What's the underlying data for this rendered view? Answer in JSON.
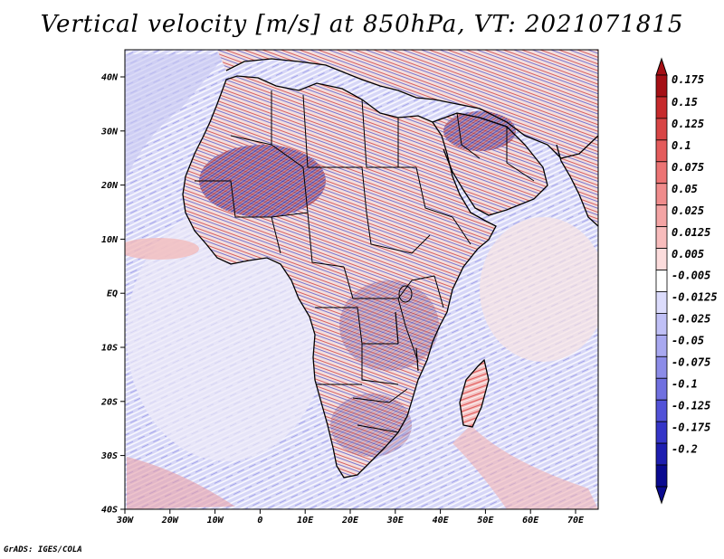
{
  "title": "Vertical velocity [m/s] at 850hPa, VT: 2021071815",
  "credit": "GrADS: IGES/COLA",
  "map": {
    "lon_ticks": [
      "30W",
      "20W",
      "10W",
      "0",
      "10E",
      "20E",
      "30E",
      "40E",
      "50E",
      "60E",
      "70E"
    ],
    "lat_ticks": [
      "40N",
      "30N",
      "20N",
      "10N",
      "EQ",
      "10S",
      "20S",
      "30S",
      "40S"
    ]
  },
  "colorbar": {
    "labels": [
      "0.175",
      "0.15",
      "0.125",
      "0.1",
      "0.075",
      "0.05",
      "0.025",
      "0.0125",
      "0.005",
      "-0.005",
      "-0.0125",
      "-0.025",
      "-0.05",
      "-0.075",
      "-0.1",
      "-0.125",
      "-0.175",
      "-0.2"
    ],
    "colors": [
      "#a50f15",
      "#c62a2c",
      "#d84545",
      "#e45c5c",
      "#ec7474",
      "#f08c8c",
      "#f4a4a4",
      "#f8bcbc",
      "#fcdcdc",
      "#ffffff",
      "#dcdcfc",
      "#c0c0f6",
      "#a8a8f0",
      "#8c8ce8",
      "#7070e0",
      "#5252d8",
      "#3535c8",
      "#1e1eb0",
      "#0a0a90"
    ],
    "top_color": "#a50f15",
    "bottom_color": "#0a0a90"
  }
}
